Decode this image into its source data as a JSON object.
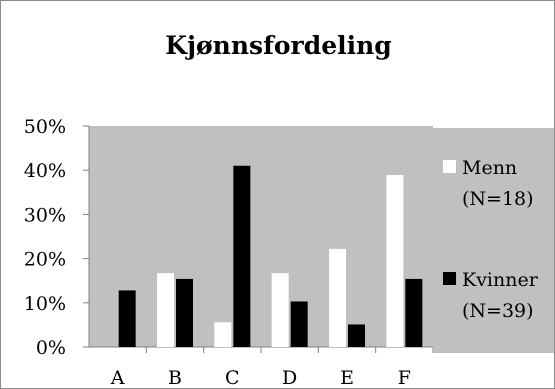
{
  "chart_data": {
    "type": "bar",
    "title": "Kjønnsfordeling",
    "xlabel": "",
    "ylabel": "",
    "categories": [
      "A",
      "B",
      "C",
      "D",
      "E",
      "F"
    ],
    "series": [
      {
        "name": "Menn (N=18)",
        "name_lines": [
          "Menn",
          "(N=18)"
        ],
        "color": "#ffffff",
        "values": [
          0,
          16.7,
          5.6,
          16.7,
          22.2,
          38.9
        ]
      },
      {
        "name": "Kvinner (N=39)",
        "name_lines": [
          "Kvinner",
          "(N=39)"
        ],
        "color": "#000000",
        "values": [
          12.8,
          15.4,
          41.0,
          10.3,
          5.1,
          15.4
        ]
      }
    ],
    "ylim": [
      0,
      50
    ],
    "yticks": [
      "0%",
      "10%",
      "20%",
      "30%",
      "40%",
      "50%"
    ],
    "grid": false,
    "plot_background": "#c0c0c0",
    "legend_position": "right"
  }
}
